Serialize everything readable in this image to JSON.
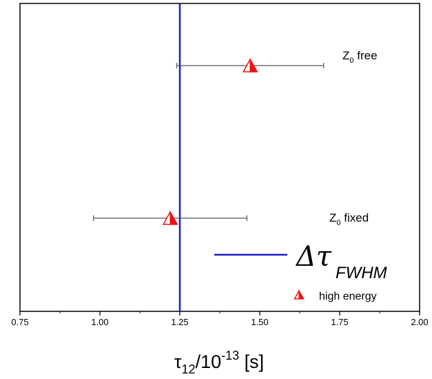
{
  "chart_data": {
    "type": "scatter",
    "xlabel": {
      "symbol": "τ",
      "symbol_sub": "12",
      "middle": "/10",
      "exponent": "-13",
      "unit": " [s]"
    },
    "xlim": [
      0.75,
      2.0
    ],
    "xticks": [
      "0.75",
      "1.00",
      "1.25",
      "1.50",
      "1.75",
      "2.00"
    ],
    "grid": false,
    "points": [
      {
        "label_main": "Z",
        "label_sub": "0",
        "label_rest": " free",
        "x": 1.47,
        "xerr_low": 1.24,
        "xerr_high": 1.7,
        "row": "upper"
      },
      {
        "label_main": "Z",
        "label_sub": "0",
        "label_rest": " fixed",
        "x": 1.22,
        "xerr_low": 0.98,
        "xerr_high": 1.46,
        "row": "lower"
      }
    ],
    "vline": {
      "x": 1.25,
      "color": "#1a1acc"
    },
    "legend": {
      "placement": "bottom-right",
      "line_symbol": "Δτ",
      "line_sub": "FWHM",
      "marker_label": "high energy"
    },
    "colors": {
      "marker": "#ee1111",
      "errorbar": "#555555",
      "vline": "#1a1acc"
    }
  }
}
